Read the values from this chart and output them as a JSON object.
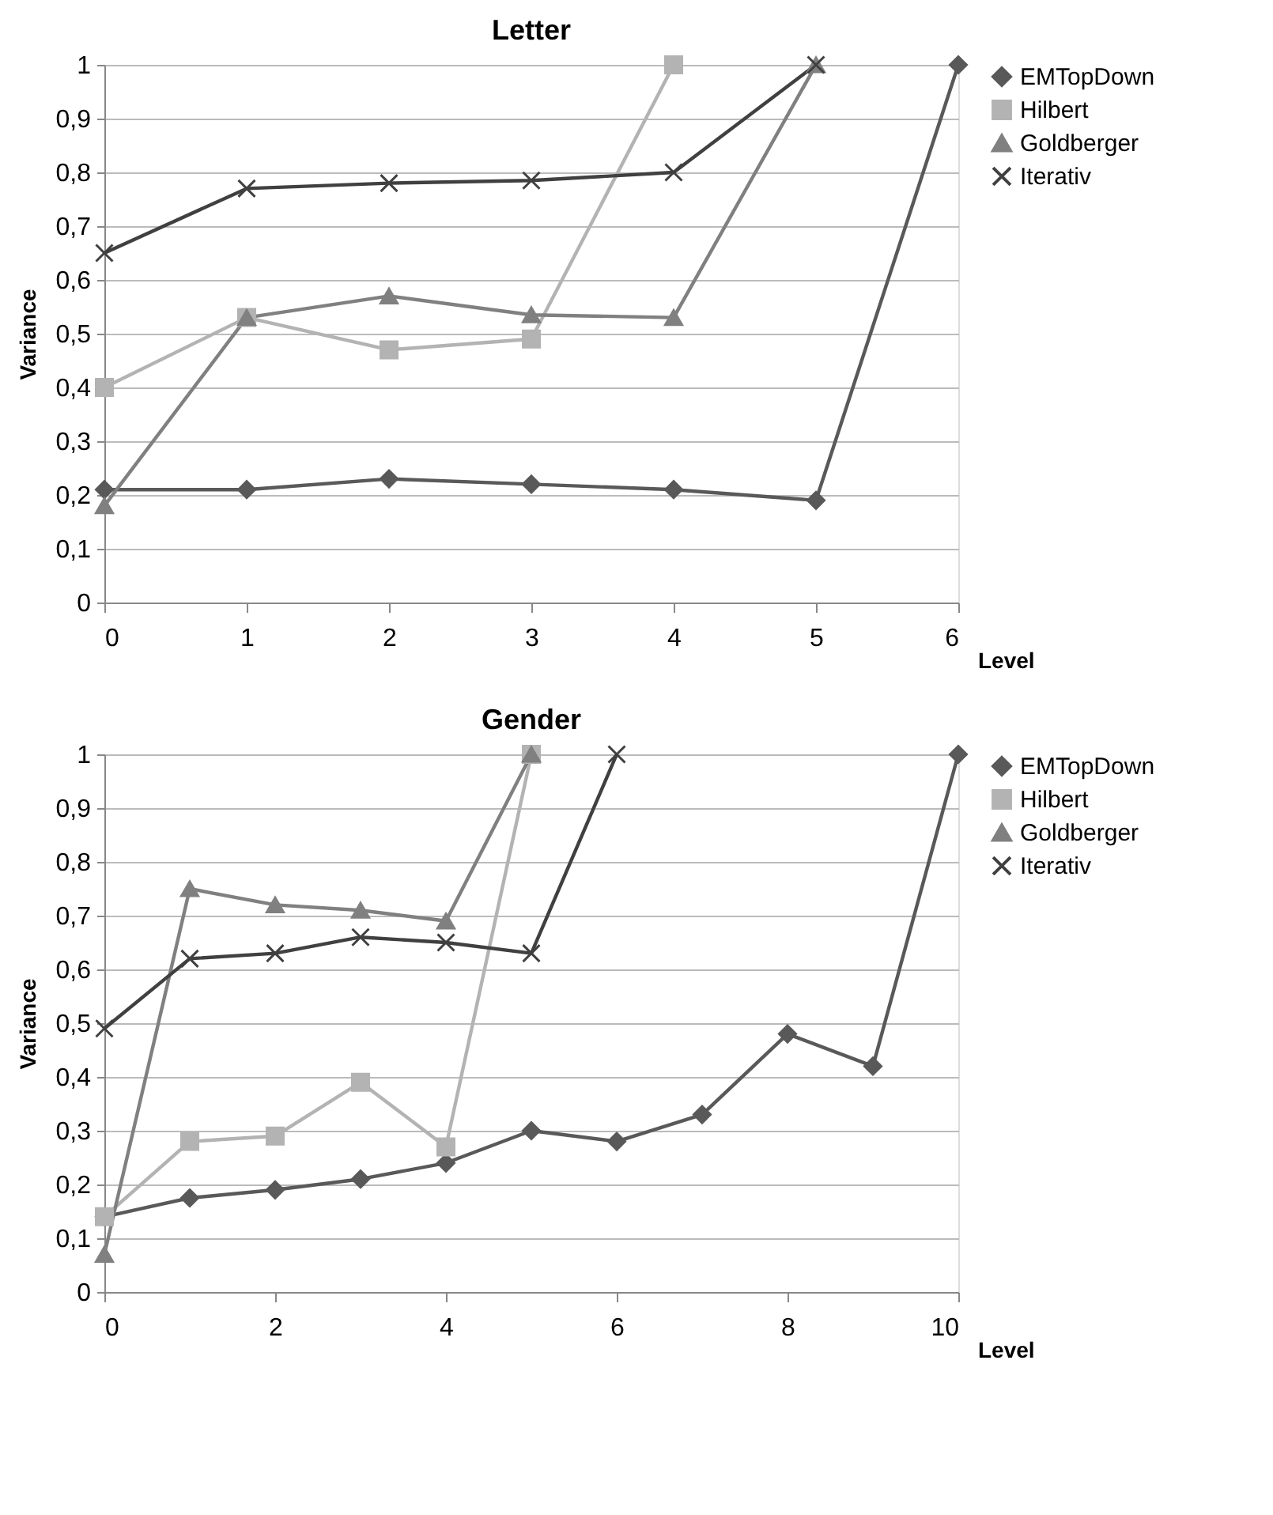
{
  "chart_data": [
    {
      "type": "line",
      "title": "Letter",
      "xlabel": "Level",
      "ylabel": "Variance",
      "xlim": [
        0,
        6
      ],
      "xticks": [
        0,
        1,
        2,
        3,
        4,
        5,
        6
      ],
      "ylim": [
        0,
        1
      ],
      "yticks": [
        0,
        {
          "value": 0.1,
          "label": "0,1"
        },
        {
          "value": 0.2,
          "label": "0,2"
        },
        {
          "value": 0.3,
          "label": "0,3"
        },
        {
          "value": 0.4,
          "label": "0,4"
        },
        {
          "value": 0.5,
          "label": "0,5"
        },
        {
          "value": 0.6,
          "label": "0,6"
        },
        {
          "value": 0.7,
          "label": "0,7"
        },
        {
          "value": 0.8,
          "label": "0,8"
        },
        {
          "value": 0.9,
          "label": "0,9"
        },
        1
      ],
      "grid": "y",
      "legend": "right",
      "series": [
        {
          "name": "EMTopDown",
          "color": "#595959",
          "marker": "diamond",
          "x": [
            0,
            1,
            2,
            3,
            4,
            5,
            6
          ],
          "values": [
            0.21,
            0.21,
            0.23,
            0.22,
            0.21,
            0.19,
            1
          ]
        },
        {
          "name": "Hilbert",
          "color": "#b3b3b3",
          "marker": "square",
          "x": [
            0,
            1,
            2,
            3,
            4
          ],
          "values": [
            0.4,
            0.53,
            0.47,
            0.49,
            1
          ]
        },
        {
          "name": "Goldberger",
          "color": "#808080",
          "marker": "triangle",
          "x": [
            0,
            1,
            2,
            3,
            4,
            5
          ],
          "values": [
            0.18,
            0.53,
            0.57,
            0.535,
            0.53,
            1
          ]
        },
        {
          "name": "Iterativ",
          "color": "#404040",
          "marker": "cross",
          "x": [
            0,
            1,
            2,
            3,
            4,
            5
          ],
          "values": [
            0.65,
            0.77,
            0.78,
            0.785,
            0.8,
            1
          ]
        }
      ]
    },
    {
      "type": "line",
      "title": "Gender",
      "xlabel": "Level",
      "ylabel": "Variance",
      "xlim": [
        0,
        10
      ],
      "xticks": [
        0,
        2,
        4,
        6,
        8,
        10
      ],
      "ylim": [
        0,
        1
      ],
      "yticks": [
        0,
        {
          "value": 0.1,
          "label": "0,1"
        },
        {
          "value": 0.2,
          "label": "0,2"
        },
        {
          "value": 0.3,
          "label": "0,3"
        },
        {
          "value": 0.4,
          "label": "0,4"
        },
        {
          "value": 0.5,
          "label": "0,5"
        },
        {
          "value": 0.6,
          "label": "0,6"
        },
        {
          "value": 0.7,
          "label": "0,7"
        },
        {
          "value": 0.8,
          "label": "0,8"
        },
        {
          "value": 0.9,
          "label": "0,9"
        },
        1
      ],
      "grid": "y",
      "legend": "right",
      "series": [
        {
          "name": "EMTopDown",
          "color": "#595959",
          "marker": "diamond",
          "x": [
            0,
            1,
            2,
            3,
            4,
            5,
            6,
            7,
            8,
            9,
            10
          ],
          "values": [
            0.14,
            0.175,
            0.19,
            0.21,
            0.24,
            0.3,
            0.28,
            0.33,
            0.48,
            0.42,
            1
          ]
        },
        {
          "name": "Hilbert",
          "color": "#b3b3b3",
          "marker": "square",
          "x": [
            0,
            1,
            2,
            3,
            4,
            5
          ],
          "values": [
            0.14,
            0.28,
            0.29,
            0.39,
            0.27,
            1
          ]
        },
        {
          "name": "Goldberger",
          "color": "#808080",
          "marker": "triangle",
          "x": [
            0,
            1,
            2,
            3,
            4,
            5
          ],
          "values": [
            0.07,
            0.75,
            0.72,
            0.71,
            0.69,
            1
          ]
        },
        {
          "name": "Iterativ",
          "color": "#404040",
          "marker": "cross",
          "x": [
            0,
            1,
            2,
            3,
            4,
            5,
            6
          ],
          "values": [
            0.49,
            0.62,
            0.63,
            0.66,
            0.65,
            0.63,
            1
          ]
        }
      ]
    }
  ]
}
